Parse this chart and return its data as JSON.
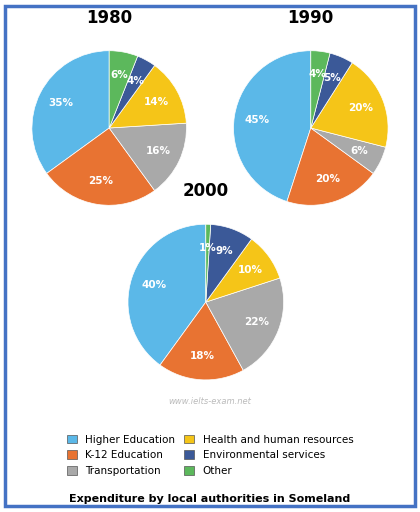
{
  "charts": [
    {
      "title": "1980",
      "labels": [
        "Higher Education",
        "K-12 Education",
        "Transportation",
        "Health and human resources",
        "Environmental services",
        "Other"
      ],
      "values": [
        35,
        25,
        16,
        14,
        4,
        6
      ],
      "colors": [
        "#5BB8E8",
        "#E87332",
        "#A9A9A9",
        "#F5C518",
        "#3B5998",
        "#5CB85C"
      ],
      "startangle": 90
    },
    {
      "title": "1990",
      "labels": [
        "Higher Education",
        "K-12 Education",
        "Transportation",
        "Health and human resources",
        "Environmental services",
        "Other"
      ],
      "values": [
        45,
        20,
        6,
        20,
        5,
        4
      ],
      "colors": [
        "#5BB8E8",
        "#E87332",
        "#A9A9A9",
        "#F5C518",
        "#3B5998",
        "#5CB85C"
      ],
      "startangle": 90
    },
    {
      "title": "2000",
      "labels": [
        "Higher Education",
        "K-12 Education",
        "Transportation",
        "Health and human resources",
        "Environmental services",
        "Other"
      ],
      "values": [
        40,
        18,
        22,
        10,
        9,
        1
      ],
      "colors": [
        "#5BB8E8",
        "#E87332",
        "#A9A9A9",
        "#F5C518",
        "#3B5998",
        "#5CB85C"
      ],
      "startangle": 90
    }
  ],
  "legend_labels": [
    "Higher Education",
    "K-12 Education",
    "Transportation",
    "Health and human resources",
    "Environmental services",
    "Other"
  ],
  "legend_colors": [
    "#5BB8E8",
    "#E87332",
    "#A9A9A9",
    "#F5C518",
    "#3B5998",
    "#5CB85C"
  ],
  "footer_title": "Expenditure by local authorities in Someland",
  "watermark": "www.ielts-exam.net",
  "background_color": "#FFFFFF",
  "border_color": "#4472C4",
  "title_fontsize": 12,
  "label_fontsize": 7.5,
  "legend_fontsize": 7.5,
  "footer_fontsize": 8
}
